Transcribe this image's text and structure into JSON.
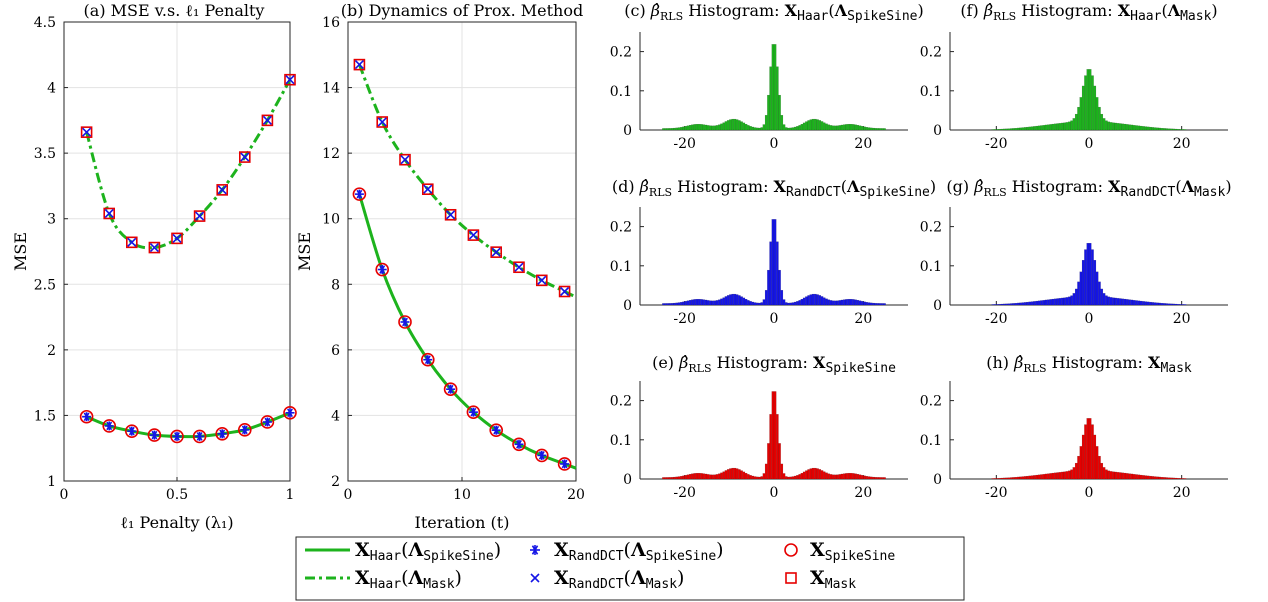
{
  "colors": {
    "green": "#1db31d",
    "blue": "#1515e6",
    "red": "#e60000",
    "grid": "#e3e3e3"
  },
  "chart_data": [
    {
      "type": "line",
      "title": "(a) MSE v.s. ℓ₁ Penalty",
      "xlabel": "ℓ₁ Penalty (λ₁)",
      "ylabel": "MSE",
      "xlim": [
        0,
        1
      ],
      "ylim": [
        1,
        4.5
      ],
      "xticks": [
        0,
        0.5,
        1
      ],
      "xtick_labels": [
        "0",
        "0.5",
        "1"
      ],
      "yticks": [
        1,
        1.5,
        2,
        2.5,
        3,
        3.5,
        4,
        4.5
      ],
      "ytick_labels": [
        "1",
        "1.5",
        "2",
        "2.5",
        "3",
        "3.5",
        "4",
        "4.5"
      ],
      "grid": true,
      "x": [
        0.1,
        0.2,
        0.3,
        0.4,
        0.5,
        0.6,
        0.7,
        0.8,
        0.9,
        1.0
      ],
      "series": [
        {
          "key": "haar_spikesine",
          "values": [
            1.49,
            1.42,
            1.38,
            1.35,
            1.34,
            1.34,
            1.36,
            1.39,
            1.45,
            1.52
          ]
        },
        {
          "key": "haar_mask",
          "values": [
            3.66,
            3.04,
            2.82,
            2.78,
            2.85,
            3.02,
            3.22,
            3.47,
            3.75,
            4.06
          ]
        }
      ]
    },
    {
      "type": "line",
      "title": "(b) Dynamics of Prox. Method",
      "xlabel": "Iteration (t)",
      "ylabel": "MSE",
      "xlim": [
        0,
        20
      ],
      "ylim": [
        2,
        16
      ],
      "xticks": [
        0,
        10,
        20
      ],
      "xtick_labels": [
        "0",
        "10",
        "20"
      ],
      "yticks": [
        2,
        4,
        6,
        8,
        10,
        12,
        14,
        16
      ],
      "ytick_labels": [
        "2",
        "4",
        "6",
        "8",
        "10",
        "12",
        "14",
        "16"
      ],
      "grid": true,
      "x": [
        1,
        3,
        5,
        7,
        9,
        11,
        13,
        15,
        17,
        19
      ],
      "series": [
        {
          "key": "haar_spikesine",
          "values": [
            10.75,
            8.45,
            6.85,
            5.7,
            4.8,
            4.1,
            3.55,
            3.12,
            2.78,
            2.52
          ]
        },
        {
          "key": "haar_mask",
          "values": [
            14.7,
            12.95,
            11.8,
            10.9,
            10.12,
            9.5,
            8.98,
            8.52,
            8.12,
            7.78
          ]
        }
      ]
    },
    {
      "type": "bar",
      "title": "(c) β̂RLS Histogram: XHaar(ΛSpikeSine)",
      "shape": "spikesine",
      "color": "#1db31d",
      "peak": 0.235,
      "xlim": [
        -30,
        30
      ],
      "ylim": [
        0,
        0.25
      ],
      "xticks": [
        -20,
        0,
        20
      ],
      "xtick_labels": [
        "-20",
        "0",
        "20"
      ],
      "yticks": [
        0,
        0.1,
        0.2
      ],
      "ytick_labels": [
        "0",
        "0.1",
        "0.2"
      ]
    },
    {
      "type": "bar",
      "title": "(d) β̂RLS Histogram: XRandDCT(ΛSpikeSine)",
      "shape": "spikesine",
      "color": "#1515e6",
      "peak": 0.235,
      "xlim": [
        -30,
        30
      ],
      "ylim": [
        0,
        0.25
      ],
      "xticks": [
        -20,
        0,
        20
      ],
      "xtick_labels": [
        "-20",
        "0",
        "20"
      ],
      "yticks": [
        0,
        0.1,
        0.2
      ],
      "ytick_labels": [
        "0",
        "0.1",
        "0.2"
      ]
    },
    {
      "type": "bar",
      "title": "(e) β̂RLS Histogram: XSpikeSine",
      "shape": "spikesine",
      "color": "#e60000",
      "peak": 0.24,
      "xlim": [
        -30,
        30
      ],
      "ylim": [
        0,
        0.25
      ],
      "xticks": [
        -20,
        0,
        20
      ],
      "xtick_labels": [
        "-20",
        "0",
        "20"
      ],
      "yticks": [
        0,
        0.1,
        0.2
      ],
      "ytick_labels": [
        "0",
        "0.1",
        "0.2"
      ]
    },
    {
      "type": "bar",
      "title": "(f) β̂RLS Histogram: XHaar(ΛMask)",
      "shape": "mask",
      "color": "#1db31d",
      "peak": 0.155,
      "xlim": [
        -30,
        30
      ],
      "ylim": [
        0,
        0.25
      ],
      "xticks": [
        -20,
        0,
        20
      ],
      "xtick_labels": [
        "-20",
        "0",
        "20"
      ],
      "yticks": [
        0,
        0.1,
        0.2
      ],
      "ytick_labels": [
        "0",
        "0.1",
        "0.2"
      ]
    },
    {
      "type": "bar",
      "title": "(g) β̂RLS Histogram: XRandDCT(ΛMask)",
      "shape": "mask",
      "color": "#1515e6",
      "peak": 0.158,
      "xlim": [
        -30,
        30
      ],
      "ylim": [
        0,
        0.25
      ],
      "xticks": [
        -20,
        0,
        20
      ],
      "xtick_labels": [
        "-20",
        "0",
        "20"
      ],
      "yticks": [
        0,
        0.1,
        0.2
      ],
      "ytick_labels": [
        "0",
        "0.1",
        "0.2"
      ]
    },
    {
      "type": "bar",
      "title": "(h) β̂RLS Histogram: XMask",
      "shape": "mask",
      "color": "#e60000",
      "peak": 0.155,
      "xlim": [
        -30,
        30
      ],
      "ylim": [
        0,
        0.25
      ],
      "xticks": [
        -20,
        0,
        20
      ],
      "xtick_labels": [
        "-20",
        "0",
        "20"
      ],
      "yticks": [
        0,
        0.1,
        0.2
      ],
      "ytick_labels": [
        "0",
        "0.1",
        "0.2"
      ]
    }
  ],
  "legend": {
    "entries": [
      {
        "label": "XHaar(ΛSpikeSine)",
        "marker": "solid-line"
      },
      {
        "label": "XHaar(ΛMask)",
        "marker": "dashdot-line"
      },
      {
        "label": "XRandDCT(ΛSpikeSine)",
        "marker": "blue-asterisk"
      },
      {
        "label": "XRandDCT(ΛMask)",
        "marker": "blue-x"
      },
      {
        "label": "XSpikeSine",
        "marker": "red-circle"
      },
      {
        "label": "XMask",
        "marker": "red-square"
      }
    ]
  }
}
